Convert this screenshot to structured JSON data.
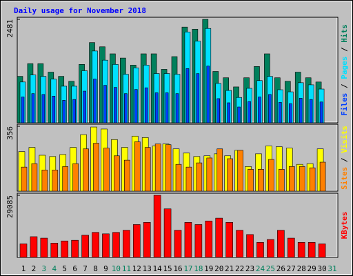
{
  "title": "Daily usage for November 2018",
  "legend_separator": " / ",
  "x_axis": {
    "categories": [
      "1",
      "2",
      "3",
      "4",
      "5",
      "6",
      "7",
      "8",
      "9",
      "10",
      "11",
      "12",
      "13",
      "14",
      "15",
      "16",
      "17",
      "18",
      "19",
      "20",
      "21",
      "22",
      "23",
      "24",
      "25",
      "26",
      "27",
      "28",
      "29",
      "30",
      "31"
    ],
    "colors": [
      "#000000",
      "#000000",
      "#00805c",
      "#00805c",
      "#000000",
      "#000000",
      "#000000",
      "#000000",
      "#000000",
      "#00805c",
      "#00805c",
      "#000000",
      "#000000",
      "#000000",
      "#000000",
      "#000000",
      "#00805c",
      "#00805c",
      "#000000",
      "#000000",
      "#000000",
      "#000000",
      "#000000",
      "#00805c",
      "#00805c",
      "#000000",
      "#000000",
      "#000000",
      "#000000",
      "#000000",
      "#00805c"
    ]
  },
  "chart_data": [
    {
      "type": "bar",
      "ylim": [
        0,
        2481
      ],
      "yticks": [
        2481
      ],
      "series": [
        {
          "name": "Hits",
          "color": "#00805c",
          "values": [
            1114,
            1418,
            1418,
            1215,
            1114,
            996,
            1401,
            1924,
            1823,
            1654,
            1553,
            1384,
            1654,
            1654,
            1283,
            1587,
            2296,
            2245,
            2481,
            1232,
            1080,
            861,
            1080,
            1350,
            1654,
            1080,
            996,
            1215,
            1080,
            979,
            null
          ]
        },
        {
          "name": "Pages",
          "color": "#00e0ff",
          "values": [
            979,
            1148,
            1114,
            1047,
            878,
            878,
            1249,
            1722,
            1502,
            1401,
            1165,
            1317,
            1384,
            1182,
            1182,
            1165,
            2178,
            1958,
            2262,
            945,
            776,
            608,
            827,
            1013,
            1114,
            793,
            743,
            962,
            911,
            810,
            null
          ]
        },
        {
          "name": "Files",
          "color": "#0040ff",
          "values": [
            620,
            700,
            680,
            640,
            540,
            560,
            760,
            1050,
            900,
            850,
            700,
            800,
            840,
            720,
            720,
            700,
            1300,
            1180,
            1360,
            580,
            480,
            380,
            510,
            620,
            680,
            490,
            460,
            590,
            560,
            500,
            null
          ]
        }
      ]
    },
    {
      "type": "bar",
      "ylim": [
        0,
        356
      ],
      "yticks": [
        356
      ],
      "series": [
        {
          "name": "Visits",
          "color": "#ffff00",
          "values": [
            217,
            240,
            197,
            190,
            201,
            240,
            310,
            352,
            341,
            283,
            240,
            302,
            294,
            248,
            259,
            232,
            209,
            190,
            194,
            205,
            194,
            224,
            135,
            205,
            248,
            244,
            236,
            147,
            151,
            232,
            null
          ]
        },
        {
          "name": "Sites",
          "color": "#ff8000",
          "values": [
            132,
            151,
            116,
            116,
            135,
            151,
            232,
            263,
            236,
            194,
            170,
            271,
            240,
            259,
            255,
            147,
            132,
            155,
            182,
            232,
            178,
            224,
            120,
            120,
            174,
            120,
            135,
            135,
            128,
            159,
            null
          ]
        }
      ]
    },
    {
      "type": "bar",
      "ylim": [
        0,
        29085
      ],
      "yticks": [
        29085
      ],
      "series": [
        {
          "name": "KBytes",
          "color": "#ff0000",
          "values": [
            6352,
            9695,
            9026,
            6686,
            7689,
            8023,
            10363,
            11700,
            11032,
            11700,
            12703,
            15378,
            16381,
            29085,
            22732,
            12703,
            16381,
            15378,
            17049,
            18387,
            16381,
            12703,
            10698,
            7020,
            8358,
            12703,
            9026,
            7020,
            7020,
            6352,
            null
          ]
        }
      ]
    }
  ]
}
